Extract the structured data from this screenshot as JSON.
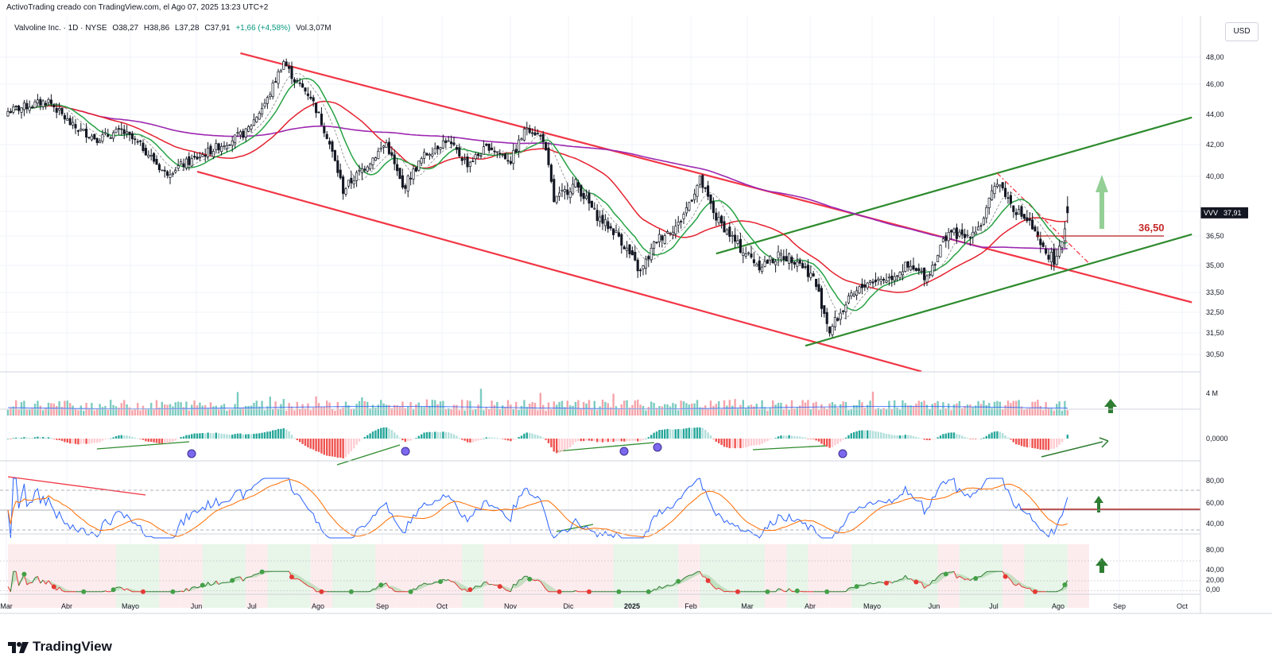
{
  "header": {
    "credit": "ActivoTrading creado con TradingView.com, el Ago 07, 2025 13:23 UTC+2",
    "symbol": "Valvoline Inc. · 1D · NYSE",
    "open": "O38,27",
    "high": "H38,86",
    "low": "L37,28",
    "close": "C37,91",
    "change": "+1,66 (+4,58%)",
    "volume": "Vol.3,07M",
    "currency": "USD"
  },
  "branding": {
    "logo_text": "TradingView"
  },
  "colors": {
    "channel_down": "#f23645",
    "channel_up": "#2e8b2e",
    "ma_fast": "#26a244",
    "ma_mid": "#e5212f",
    "ma_slow": "#9c27b0",
    "bull": "#089981",
    "bear": "#f23645",
    "rsi": "#2962ff",
    "rsi_ma": "#ff6d00",
    "divergence_dot": "#7b68ee"
  },
  "chart_data": {
    "type": "candlestick",
    "title": "Valvoline Inc. · 1D · NYSE",
    "x_axis_labels": [
      "Mar",
      "Abr",
      "Mayo",
      "Jun",
      "Jul",
      "Ago",
      "Sep",
      "Oct",
      "Nov",
      "Dic",
      "2025",
      "Feb",
      "Mar",
      "Abr",
      "Mayo",
      "Jun",
      "Jul",
      "Ago",
      "Sep",
      "Oct"
    ],
    "y_axis_labels": [
      "48,00",
      "46,00",
      "44,00",
      "42,00",
      "40,00",
      "38,00",
      "36,50",
      "35,00",
      "33,50",
      "32,50",
      "31,50",
      "30,50"
    ],
    "last_price_label": "VVV",
    "last_price": "37,91",
    "level_label": "36,50",
    "level": 36.5,
    "price_keypoints": [
      {
        "t": 0,
        "v": 44.2
      },
      {
        "t": 8,
        "v": 44.6
      },
      {
        "t": 15,
        "v": 44.9
      },
      {
        "t": 24,
        "v": 43.2
      },
      {
        "t": 33,
        "v": 42.4
      },
      {
        "t": 42,
        "v": 42.9
      },
      {
        "t": 50,
        "v": 41.8
      },
      {
        "t": 58,
        "v": 40.2
      },
      {
        "t": 68,
        "v": 41.0
      },
      {
        "t": 78,
        "v": 41.9
      },
      {
        "t": 88,
        "v": 42.8
      },
      {
        "t": 96,
        "v": 45.0
      },
      {
        "t": 102,
        "v": 47.7
      },
      {
        "t": 106,
        "v": 46.3
      },
      {
        "t": 112,
        "v": 45.2
      },
      {
        "t": 118,
        "v": 42.6
      },
      {
        "t": 124,
        "v": 39.2
      },
      {
        "t": 132,
        "v": 40.6
      },
      {
        "t": 140,
        "v": 42.1
      },
      {
        "t": 146,
        "v": 39.3
      },
      {
        "t": 154,
        "v": 41.3
      },
      {
        "t": 162,
        "v": 42.3
      },
      {
        "t": 170,
        "v": 40.8
      },
      {
        "t": 178,
        "v": 41.9
      },
      {
        "t": 186,
        "v": 41.0
      },
      {
        "t": 192,
        "v": 43.2
      },
      {
        "t": 198,
        "v": 42.4
      },
      {
        "t": 202,
        "v": 38.6
      },
      {
        "t": 210,
        "v": 39.6
      },
      {
        "t": 218,
        "v": 37.7
      },
      {
        "t": 226,
        "v": 36.5
      },
      {
        "t": 234,
        "v": 34.6
      },
      {
        "t": 240,
        "v": 36.3
      },
      {
        "t": 248,
        "v": 37.2
      },
      {
        "t": 256,
        "v": 39.8
      },
      {
        "t": 262,
        "v": 37.6
      },
      {
        "t": 270,
        "v": 36.0
      },
      {
        "t": 278,
        "v": 35.0
      },
      {
        "t": 286,
        "v": 35.5
      },
      {
        "t": 292,
        "v": 35.3
      },
      {
        "t": 298,
        "v": 34.3
      },
      {
        "t": 304,
        "v": 31.6
      },
      {
        "t": 310,
        "v": 32.9
      },
      {
        "t": 318,
        "v": 34.1
      },
      {
        "t": 326,
        "v": 34.3
      },
      {
        "t": 332,
        "v": 34.9
      },
      {
        "t": 340,
        "v": 34.4
      },
      {
        "t": 348,
        "v": 36.8
      },
      {
        "t": 354,
        "v": 36.4
      },
      {
        "t": 360,
        "v": 37.2
      },
      {
        "t": 366,
        "v": 39.8
      },
      {
        "t": 372,
        "v": 38.2
      },
      {
        "t": 378,
        "v": 37.3
      },
      {
        "t": 382,
        "v": 35.9
      },
      {
        "t": 388,
        "v": 35.2
      },
      {
        "t": 390,
        "v": 36.3
      },
      {
        "t": 392,
        "v": 37.9
      }
    ],
    "trendlines": [
      {
        "name": "canal-bajista-superior",
        "from": {
          "t": 86,
          "v": 48.3
        },
        "to": {
          "t": 438,
          "v": 33.0
        }
      },
      {
        "name": "canal-bajista-inferior",
        "from": {
          "t": 70,
          "v": 40.3
        },
        "to": {
          "t": 338,
          "v": 29.7
        }
      },
      {
        "name": "canal-alcista-inferior",
        "from": {
          "t": 295,
          "v": 30.9
        },
        "to": {
          "t": 438,
          "v": 36.6
        }
      },
      {
        "name": "canal-alcista-superior",
        "from": {
          "t": 262,
          "v": 35.6
        },
        "to": {
          "t": 438,
          "v": 43.8
        }
      },
      {
        "name": "directriz-punteada",
        "from": {
          "t": 366,
          "v": 40.2
        },
        "to": {
          "t": 400,
          "v": 35.1
        }
      }
    ],
    "subpanes": {
      "volume": {
        "axis_label": "4 M"
      },
      "macd": {
        "axis_label": "0,0000"
      },
      "rsi": {
        "axis_labels": [
          "80,00",
          "60,00",
          "40,00"
        ],
        "levels": [
          70,
          50,
          30
        ],
        "resistance": 51
      },
      "oscillator": {
        "axis_labels": [
          "80,00",
          "40,00",
          "20,00",
          "0,00"
        ]
      }
    }
  }
}
